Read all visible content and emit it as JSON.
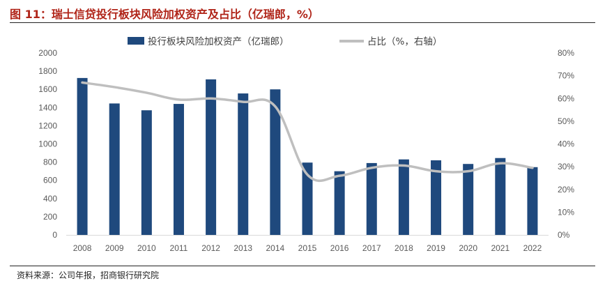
{
  "figure": {
    "title": "图 11：瑞士信贷投行板块风险加权资产及占比（亿瑞郎，%）",
    "source": "资料来源：公司年报，招商银行研究院"
  },
  "colors": {
    "bar": "#1f497d",
    "line": "#bfbfbf",
    "title": "#b02418",
    "axis_text": "#595959"
  },
  "chart_data": {
    "type": "bar",
    "categories": [
      "2008",
      "2009",
      "2010",
      "2011",
      "2012",
      "2013",
      "2014",
      "2015",
      "2016",
      "2017",
      "2018",
      "2019",
      "2020",
      "2021",
      "2022"
    ],
    "series": [
      {
        "name": "投行板块风险加权资产（亿瑞郎）",
        "type": "bar",
        "axis": "left",
        "values": [
          1725,
          1445,
          1370,
          1440,
          1710,
          1555,
          1600,
          795,
          700,
          790,
          830,
          820,
          780,
          845,
          745
        ]
      },
      {
        "name": "占比（%，右轴）",
        "type": "line",
        "axis": "right",
        "values": [
          67,
          65,
          62.5,
          59.5,
          60,
          58.5,
          56.5,
          26.5,
          26,
          29.5,
          30.5,
          28,
          28,
          31.5,
          29.5
        ]
      }
    ],
    "y_left": {
      "min": 0,
      "max": 2000,
      "step": 200,
      "ticks": [
        "0",
        "200",
        "400",
        "600",
        "800",
        "1000",
        "1200",
        "1400",
        "1600",
        "1800",
        "2000"
      ]
    },
    "y_right": {
      "min": 0,
      "max": 80,
      "step": 10,
      "ticks": [
        "0%",
        "10%",
        "20%",
        "30%",
        "40%",
        "50%",
        "60%",
        "70%",
        "80%"
      ]
    },
    "grid": false,
    "legend": "top-center"
  }
}
